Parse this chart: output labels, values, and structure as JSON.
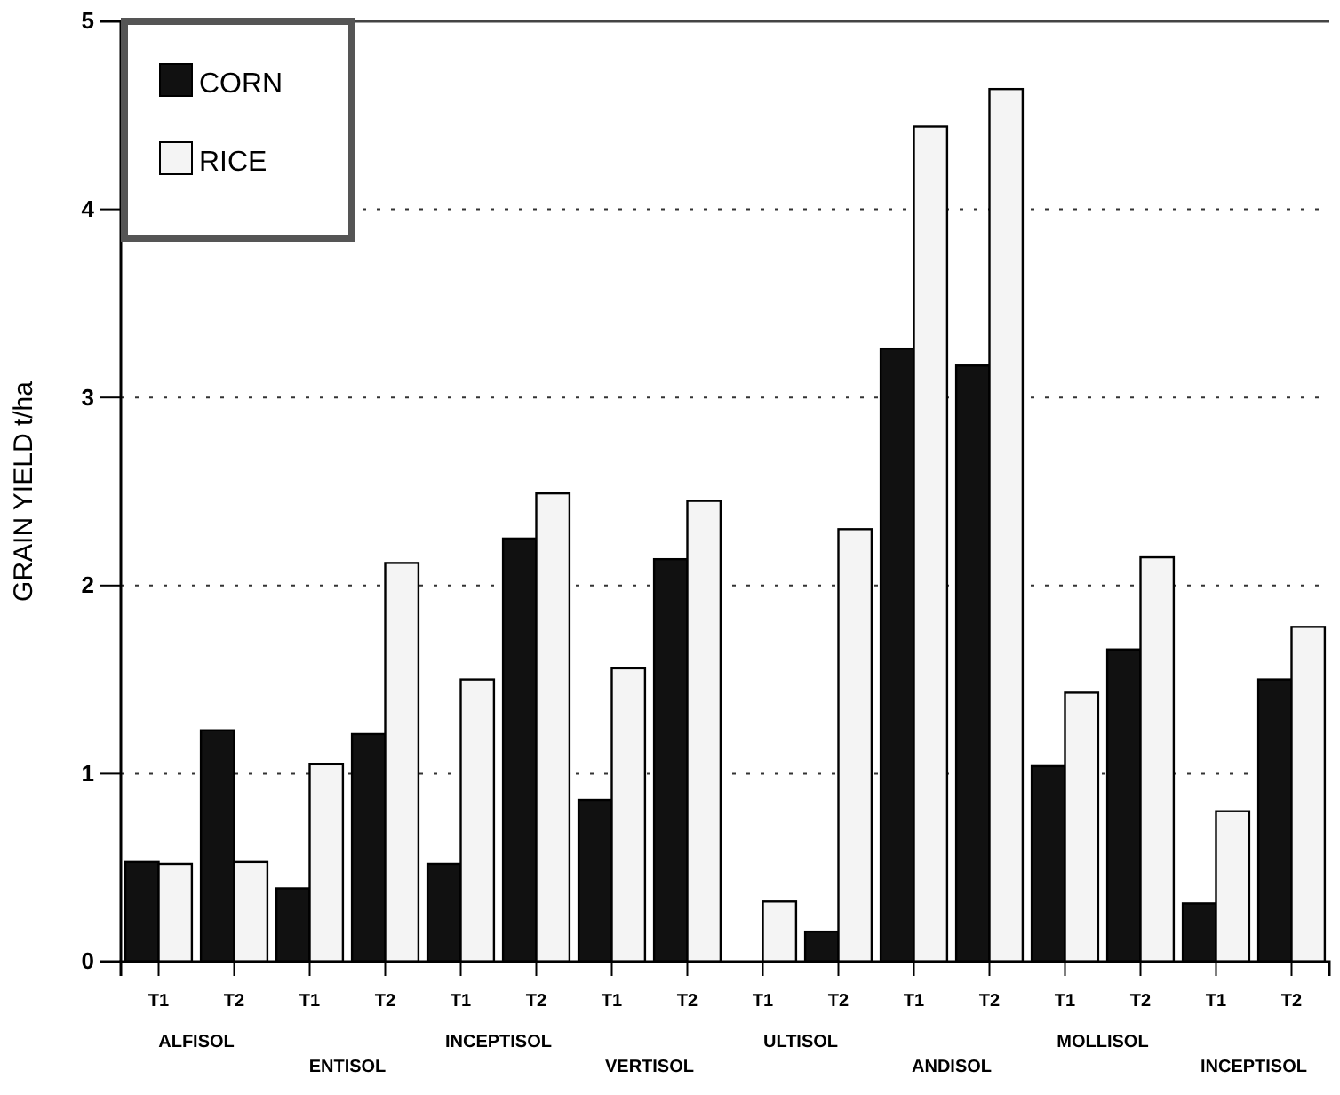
{
  "chart_data": {
    "type": "bar",
    "ylabel": "GRAIN YIELD t/ha",
    "categories": [
      "T1",
      "T2",
      "T1",
      "T2",
      "T1",
      "T2",
      "T1",
      "T2",
      "T1",
      "T2",
      "T1",
      "T2",
      "T1",
      "T2",
      "T1",
      "T2"
    ],
    "series": [
      {
        "name": "CORN",
        "color": "#111111",
        "values": [
          0.53,
          1.23,
          0.39,
          1.21,
          0.52,
          2.25,
          0.86,
          2.14,
          0,
          0.16,
          3.26,
          3.17,
          1.04,
          1.66,
          0.31,
          1.5
        ]
      },
      {
        "name": "RICE",
        "color": "#f4f4f4",
        "values": [
          0.52,
          0.53,
          1.05,
          2.12,
          1.5,
          2.49,
          1.56,
          2.45,
          0.32,
          2.3,
          4.44,
          4.64,
          1.43,
          2.15,
          0.8,
          1.78
        ]
      }
    ],
    "annotations": [
      "ALFISOL",
      "ENTISOL",
      "INCEPTISOL",
      "VERTISOL",
      "ULTISOL",
      "ANDISOL",
      "MOLLISOL",
      "INCEPTISOL"
    ],
    "ylim": [
      0,
      5
    ],
    "yticks": [
      0,
      1,
      2,
      3,
      4,
      5
    ],
    "grid": "y",
    "legend": "top left"
  }
}
